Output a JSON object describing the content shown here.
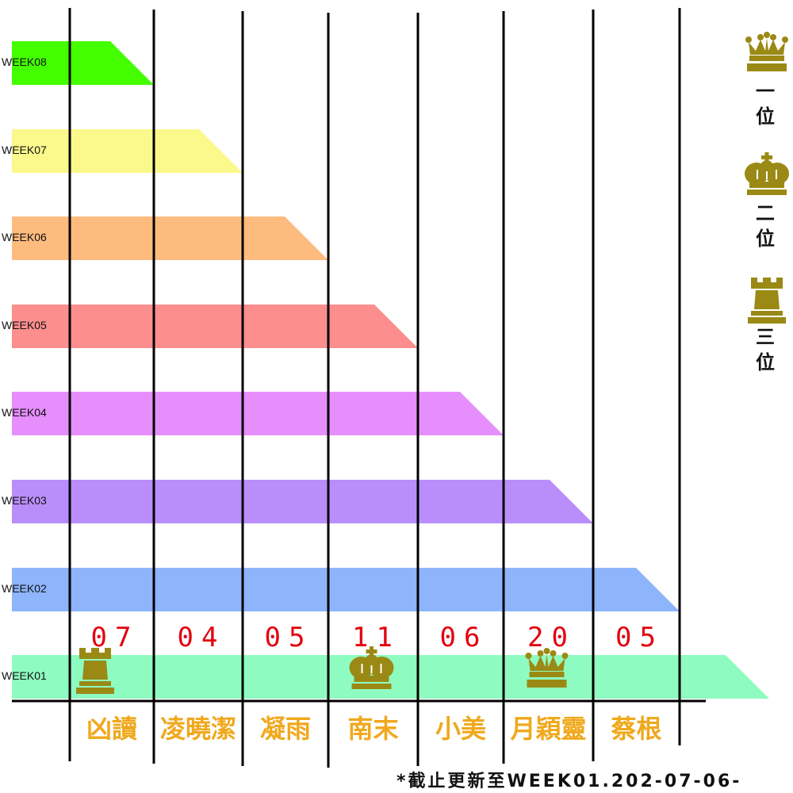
{
  "chart_data": {
    "type": "bar",
    "orientation": "horizontal-staircase",
    "weeks": [
      "WEEK08",
      "WEEK07",
      "WEEK06",
      "WEEK05",
      "WEEK04",
      "WEEK03",
      "WEEK02",
      "WEEK01"
    ],
    "week_colors": [
      "#44ff00",
      "#fbf88c",
      "#fdbb7e",
      "#fc8e8e",
      "#e68efc",
      "#b98efb",
      "#8eb4fc",
      "#8efcc0"
    ],
    "bar_extent_columns": [
      1,
      2,
      3,
      4,
      5,
      6,
      7,
      8
    ],
    "candidates": [
      {
        "name": "凶讀",
        "score": "07",
        "medal": "rook"
      },
      {
        "name": "凌曉潔",
        "score": "04",
        "medal": ""
      },
      {
        "name": "凝雨",
        "score": "05",
        "medal": ""
      },
      {
        "name": "南末",
        "score": "11",
        "medal": "king"
      },
      {
        "name": "小美",
        "score": "06",
        "medal": ""
      },
      {
        "name": "月穎靈",
        "score": "20",
        "medal": "queen"
      },
      {
        "name": "蔡根",
        "score": "05",
        "medal": ""
      }
    ]
  },
  "legend": [
    {
      "icon": "queen-icon",
      "label_lines": [
        "一",
        "位"
      ]
    },
    {
      "icon": "king-icon",
      "label_lines": [
        "二",
        "位"
      ]
    },
    {
      "icon": "rook-icon",
      "label_lines": [
        "三",
        "位"
      ]
    }
  ],
  "footnote": "*截止更新至WEEK01.202-07-06-",
  "colors": {
    "medal": "#9a8a15",
    "score": "#e3000f",
    "name": "#f0a81c"
  }
}
